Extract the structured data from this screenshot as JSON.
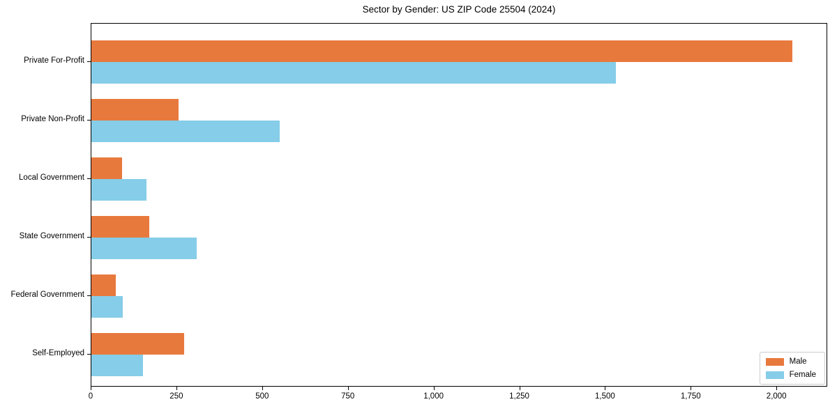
{
  "title": "Sector by Gender: US ZIP Code 25504 (2024)",
  "chart_data": {
    "type": "bar",
    "orientation": "horizontal",
    "title": "Sector by Gender: US ZIP Code 25504 (2024)",
    "categories": [
      "Private For-Profit",
      "Private Non-Profit",
      "Local Government",
      "State Government",
      "Federal Government",
      "Self-Employed"
    ],
    "series": [
      {
        "name": "Male",
        "color": "#e8793d",
        "values": [
          2045,
          255,
          90,
          168,
          72,
          270
        ]
      },
      {
        "name": "Female",
        "color": "#85cde8",
        "values": [
          1530,
          550,
          160,
          308,
          92,
          150
        ]
      }
    ],
    "xlabel": "",
    "ylabel": "",
    "xlim": [
      0,
      2148
    ],
    "xticks": {
      "values": [
        0,
        250,
        500,
        750,
        1000,
        1250,
        1500,
        1750,
        2000
      ],
      "labels": [
        "0",
        "250",
        "500",
        "750",
        "1,000",
        "1,250",
        "1,500",
        "1,750",
        "2,000"
      ]
    },
    "grid": false,
    "legend_position": "lower right",
    "background_color": "#ffffff",
    "spine_color": "#000000"
  }
}
